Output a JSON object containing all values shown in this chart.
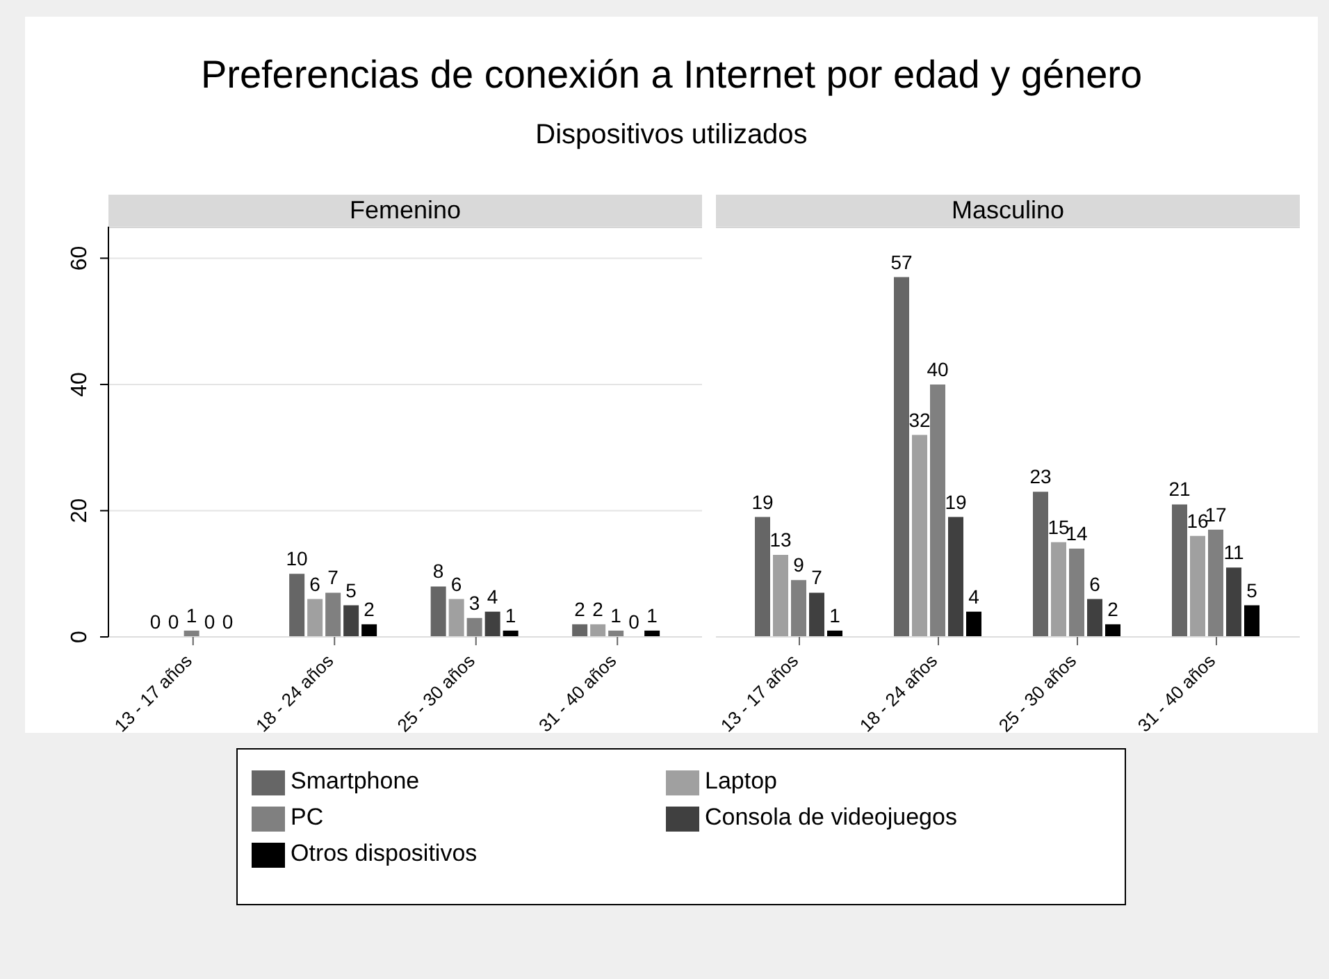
{
  "chart_data": [
    {
      "type": "bar",
      "title": "Preferencias de conexión a Internet por edad y género",
      "subtitle": "Dispositivos utilizados",
      "annotations": [
        "Femenino"
      ],
      "categories": [
        "13 - 17 años",
        "18 - 24 años",
        "25 - 30 años",
        "31 - 40 años"
      ],
      "series": [
        {
          "name": "Smartphone",
          "color": "#666666",
          "values": [
            0,
            10,
            8,
            2
          ]
        },
        {
          "name": "Laptop",
          "color": "#a0a0a0",
          "values": [
            0,
            6,
            6,
            2
          ]
        },
        {
          "name": "PC",
          "color": "#808080",
          "values": [
            1,
            7,
            3,
            1
          ]
        },
        {
          "name": "Consola de videojuegos",
          "color": "#404040",
          "values": [
            0,
            5,
            4,
            0
          ]
        },
        {
          "name": "Otros dispositivos",
          "color": "#000000",
          "values": [
            0,
            2,
            1,
            1
          ]
        }
      ],
      "ylim": [
        0,
        65
      ],
      "yticks": [
        0,
        20,
        40,
        60
      ],
      "grid": "y",
      "data_labels": true,
      "legend": "bottom"
    },
    {
      "type": "bar",
      "annotations": [
        "Masculino"
      ],
      "categories": [
        "13 - 17 años",
        "18 - 24 años",
        "25 - 30 años",
        "31 - 40 años"
      ],
      "series": [
        {
          "color": "#666666",
          "values": [
            19,
            57,
            23,
            21
          ]
        },
        {
          "color": "#a0a0a0",
          "values": [
            13,
            32,
            15,
            16
          ]
        },
        {
          "color": "#808080",
          "values": [
            9,
            40,
            14,
            17
          ]
        },
        {
          "color": "#404040",
          "values": [
            7,
            19,
            6,
            11
          ]
        },
        {
          "color": "#000000",
          "values": [
            1,
            4,
            2,
            5
          ]
        }
      ],
      "ylim": [
        0,
        65
      ],
      "yticks": [
        0,
        20,
        40,
        60
      ],
      "grid": "y",
      "data_labels": true,
      "tick_labels": "x"
    }
  ]
}
